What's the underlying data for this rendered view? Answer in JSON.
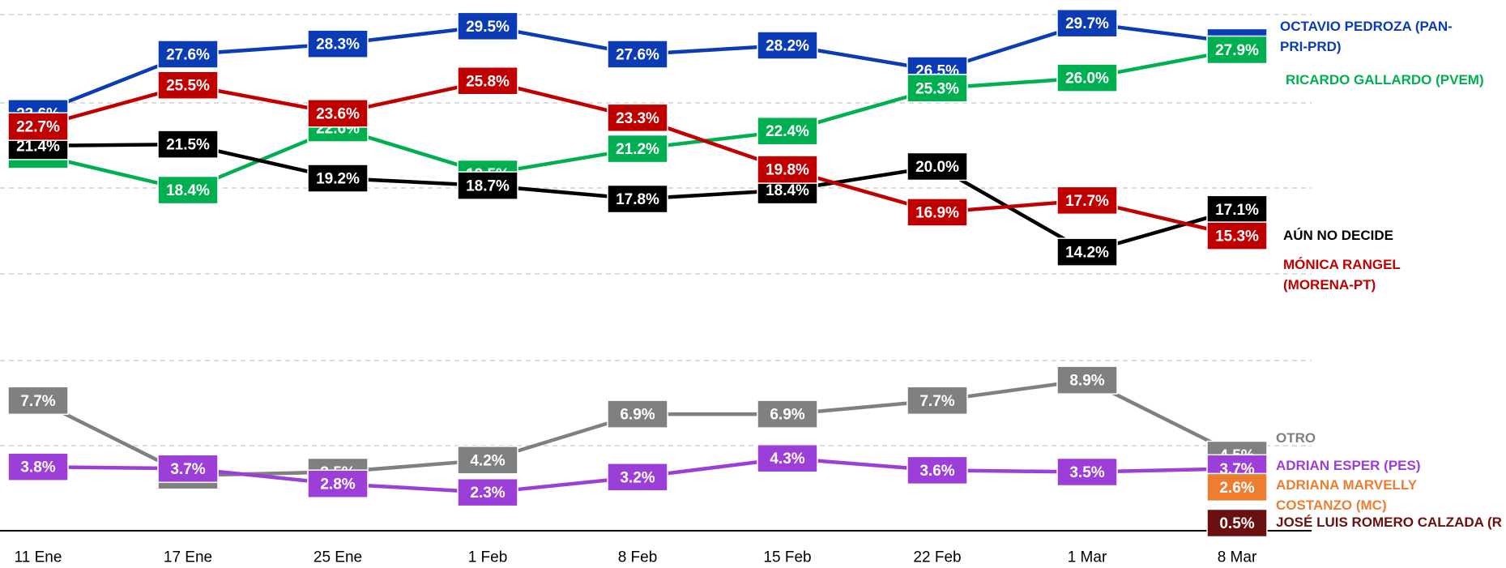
{
  "chart_data": {
    "type": "line",
    "categories": [
      "11 Ene",
      "17 Ene",
      "25 Ene",
      "1 Feb",
      "8 Feb",
      "15 Feb",
      "22 Feb",
      "1 Mar",
      "8 Mar"
    ],
    "ylim": [
      13,
      31
    ],
    "y2lim": [
      0,
      10
    ],
    "series": [
      {
        "name": "OCTAVIO PEDROZA (PAN-PRI-PRD)",
        "color": "#0b3bb5",
        "values": [
          23.6,
          27.6,
          28.3,
          29.5,
          27.6,
          28.2,
          26.5,
          29.7,
          28.4
        ],
        "value_labels": [
          "23.6%",
          "27.6%",
          "28.3%",
          "29.5%",
          "27.6%",
          "28.2%",
          "26.5%",
          "29.7%",
          "28.4%"
        ]
      },
      {
        "name": "RICARDO GALLARDO (PVEM)",
        "color": "#00b050",
        "values": [
          20.8,
          18.4,
          22.6,
          19.5,
          21.2,
          22.4,
          25.3,
          26.0,
          27.9
        ],
        "value_labels": [
          "20.8%",
          "18.4%",
          "22.6%",
          "19.5%",
          "21.2%",
          "22.4%",
          "25.3%",
          "26.0%",
          "27.9%"
        ]
      },
      {
        "name": "AÚN NO DECIDE",
        "color": "#000000",
        "values": [
          21.4,
          21.5,
          19.2,
          18.7,
          17.8,
          18.4,
          20.0,
          14.2,
          17.1
        ],
        "value_labels": [
          "21.4%",
          "21.5%",
          "19.2%",
          "18.7%",
          "17.8%",
          "18.4%",
          "20.0%",
          "14.2%",
          "17.1%"
        ]
      },
      {
        "name": "MÓNICA RANGEL (MORENA-PT)",
        "color": "#c00000",
        "values": [
          22.7,
          25.5,
          23.6,
          25.8,
          23.3,
          19.8,
          16.9,
          17.7,
          15.3
        ],
        "value_labels": [
          "22.7%",
          "25.5%",
          "23.6%",
          "25.8%",
          "23.3%",
          "19.8%",
          "16.9%",
          "17.7%",
          "15.3%"
        ]
      },
      {
        "name": "OTRO",
        "color": "#808080",
        "axis": "y2",
        "values": [
          7.7,
          3.3,
          3.5,
          4.2,
          6.9,
          6.9,
          7.7,
          8.9,
          4.5
        ],
        "value_labels": [
          "7.7%",
          "3.3%",
          "3.5%",
          "4.2%",
          "6.9%",
          "6.9%",
          "7.7%",
          "8.9%",
          "4.5%"
        ]
      },
      {
        "name": "ADRIAN ESPER (PES)",
        "color": "#9b3fd8",
        "axis": "y2",
        "values": [
          3.8,
          3.7,
          2.8,
          2.3,
          3.2,
          4.3,
          3.6,
          3.5,
          3.7
        ],
        "value_labels": [
          "3.8%",
          "3.7%",
          "2.8%",
          "2.3%",
          "3.2%",
          "4.3%",
          "3.6%",
          "3.5%",
          "3.7%"
        ]
      },
      {
        "name": "ADRIANA MARVELLY COSTANZO (MC)",
        "color": "#ed7d31",
        "axis": "y2",
        "values": [
          null,
          null,
          null,
          null,
          null,
          null,
          null,
          null,
          2.6
        ],
        "value_labels": [
          null,
          null,
          null,
          null,
          null,
          null,
          null,
          null,
          "2.6%"
        ]
      },
      {
        "name": "JOSÉ LUIS ROMERO CALZADA (R",
        "color": "#6b1010",
        "axis": "y2",
        "values": [
          null,
          null,
          null,
          null,
          null,
          null,
          null,
          null,
          0.5
        ],
        "value_labels": [
          null,
          null,
          null,
          null,
          null,
          null,
          null,
          null,
          "0.5%"
        ]
      }
    ]
  }
}
